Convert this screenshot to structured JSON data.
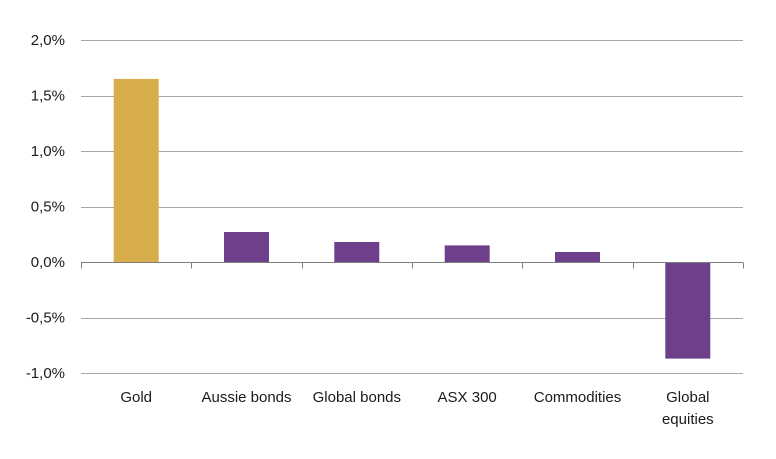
{
  "chart_data": {
    "type": "bar",
    "title": "",
    "xlabel": "",
    "ylabel": "",
    "categories": [
      [
        "Gold"
      ],
      [
        "Aussie bonds"
      ],
      [
        "Global bonds"
      ],
      [
        "ASX 300"
      ],
      [
        "Commodities"
      ],
      [
        "Global",
        "equities"
      ]
    ],
    "values": [
      1.65,
      0.27,
      0.18,
      0.15,
      0.09,
      -0.87
    ],
    "bar_colors": [
      "#D8AE4C",
      "#6E3F8A",
      "#6E3F8A",
      "#6E3F8A",
      "#6E3F8A",
      "#6E3F8A"
    ],
    "ylim": [
      -1.0,
      2.0
    ],
    "y_ticks": [
      2.0,
      1.5,
      1.0,
      0.5,
      0.0,
      -0.5,
      -1.0
    ],
    "y_tick_labels": [
      "2,0%",
      "1,5%",
      "1,0%",
      "0,5%",
      "0,0%",
      "-0,5%",
      "-1,0%"
    ],
    "grid": true,
    "grid_color": "#a6a6a6",
    "axis_color": "#7f7f7f",
    "legend": false
  }
}
